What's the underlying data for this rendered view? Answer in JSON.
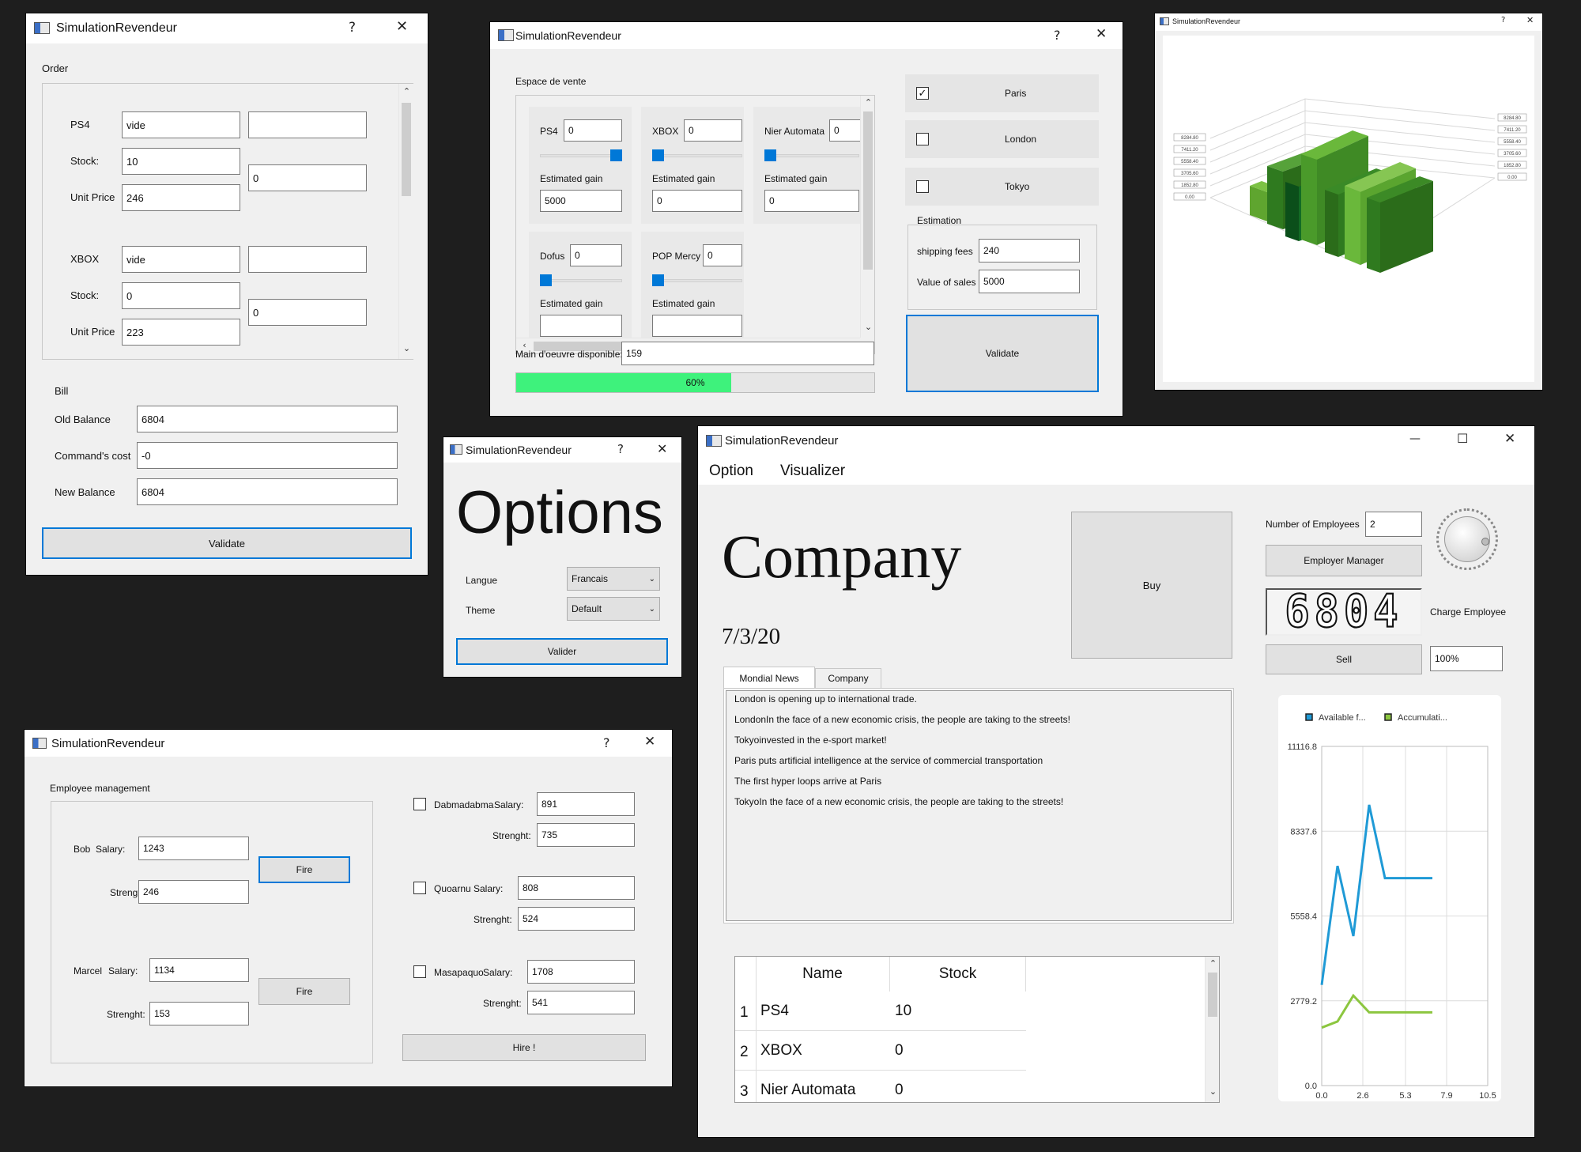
{
  "app_title": "SimulationRevendeur",
  "help_glyph": "?",
  "close_glyph": "✕",
  "min_glyph": "—",
  "max_glyph": "☐",
  "order_window": {
    "group_label": "Order",
    "products": [
      {
        "name": "PS4",
        "name_value": "vide",
        "stock_label": "Stock:",
        "stock": "10",
        "price_label": "Unit Price",
        "price": "246",
        "side_top": "",
        "side_qty": "0"
      },
      {
        "name": "XBOX",
        "name_value": "vide",
        "stock_label": "Stock:",
        "stock": "0",
        "price_label": "Unit Price",
        "price": "223",
        "side_top": "",
        "side_qty": "0"
      }
    ],
    "bill_label": "Bill",
    "old_balance_label": "Old Balance",
    "old_balance": "6804",
    "command_cost_label": "Command's cost",
    "command_cost": "-0",
    "new_balance_label": "New Balance",
    "new_balance": "6804",
    "validate": "Validate"
  },
  "sales_window": {
    "group_label": "Espace de vente",
    "gain_label": "Estimated gain",
    "cards": [
      {
        "name": "PS4",
        "qty": "0",
        "gain": "5000",
        "slider": 1.0
      },
      {
        "name": "XBOX",
        "qty": "0",
        "gain": "0",
        "slider": 0.0
      },
      {
        "name": "Nier Automata",
        "qty": "0",
        "gain": "0",
        "slider": 0.0
      },
      {
        "name": "Dofus",
        "qty": "0",
        "gain": "",
        "slider": 0.0
      },
      {
        "name": "POP Mercy",
        "qty": "0",
        "gain": "",
        "slider": 0.0
      }
    ],
    "workforce_label": "Main d'oeuvre disponible:",
    "workforce": "159",
    "progress_percent": 60,
    "progress_text": "60%",
    "cities": [
      {
        "name": "Paris",
        "checked": true
      },
      {
        "name": "London",
        "checked": false
      },
      {
        "name": "Tokyo",
        "checked": false
      }
    ],
    "check_mark": "✓",
    "estimation_label": "Estimation",
    "shipping_label": "shipping fees",
    "shipping": "240",
    "value_sales_label": "Value of sales",
    "value_sales": "5000",
    "validate": "Validate"
  },
  "chart3d_window": {
    "axis_left": [
      "8284.80",
      "7411.20",
      "5558.40",
      "3705.60",
      "1852.80",
      "0.00"
    ],
    "axis_right": [
      "8284.80",
      "7411.20",
      "5558.40",
      "3705.60",
      "1852.80",
      "0.00"
    ]
  },
  "options_window": {
    "heading": "Options",
    "language_label": "Langue",
    "language": "Francais",
    "theme_label": "Theme",
    "theme": "Default",
    "validate": "Valider"
  },
  "employee_window": {
    "group_label": "Employee management",
    "salary_label": "Salary:",
    "strength_label": "Strenght:",
    "fire": "Fire",
    "hire": "Hire !",
    "employees": [
      {
        "name": "Bob",
        "salary": "1243",
        "strength": "246"
      },
      {
        "name": "Marcel",
        "salary": "1134",
        "strength": "153"
      }
    ],
    "candidates": [
      {
        "name": "Dabmadabma",
        "salary": "891",
        "strength": "735"
      },
      {
        "name": "Quoarnu",
        "salary": "808",
        "strength": "524"
      },
      {
        "name": "Masapaquo",
        "salary": "1708",
        "strength": "541"
      }
    ]
  },
  "main_window": {
    "menu": [
      "Option",
      "Visualizer"
    ],
    "company": "Company",
    "date": "7/3/20",
    "buy": "Buy",
    "employees_label": "Number of Employees",
    "employees_count": "2",
    "employer_manager": "Employer Manager",
    "lcd_value": "6804",
    "charge_label": "Charge Employee",
    "sell": "Sell",
    "sell_percent": "100%",
    "tabs": [
      "Mondial News",
      "Company"
    ],
    "news": [
      "London is opening up to international trade.",
      "LondonIn the face of a new economic crisis, the people are taking to the streets!",
      "Tokyoinvested in the e-sport market!",
      "Paris puts artificial intelligence at the service of commercial transportation",
      "The first hyper loops arrive at Paris",
      "TokyoIn the face of a new economic crisis, the people are taking to the streets!"
    ],
    "table": {
      "headers": [
        "Name",
        "Stock"
      ],
      "rows": [
        {
          "index": "1",
          "name": "PS4",
          "stock": "10"
        },
        {
          "index": "2",
          "name": "XBOX",
          "stock": "0"
        },
        {
          "index": "3",
          "name": "Nier Automata",
          "stock": "0"
        }
      ]
    }
  },
  "chart_data": {
    "type": "line",
    "title": "",
    "xlabel": "",
    "ylabel": "",
    "legend_position": "top",
    "xlim": [
      0.0,
      10.5
    ],
    "ylim": [
      0.0,
      11116.8
    ],
    "x_ticks": [
      "0.0",
      "2.6",
      "5.3",
      "7.9",
      "10.5"
    ],
    "y_ticks": [
      "11116.8",
      "8337.6",
      "5558.4",
      "2779.2",
      "0.0"
    ],
    "series": [
      {
        "name": "Available f...",
        "color": "#1f9ad6",
        "x": [
          0,
          1,
          2,
          3,
          4,
          5,
          6,
          7
        ],
        "y": [
          3300,
          7200,
          4900,
          9200,
          6800,
          6800,
          6800,
          6800
        ]
      },
      {
        "name": "Accumulati...",
        "color": "#8cc63f",
        "x": [
          0,
          1,
          2,
          3,
          4,
          5,
          6,
          7
        ],
        "y": [
          1900,
          2100,
          2950,
          2400,
          2400,
          2400,
          2400,
          2400
        ]
      }
    ]
  }
}
